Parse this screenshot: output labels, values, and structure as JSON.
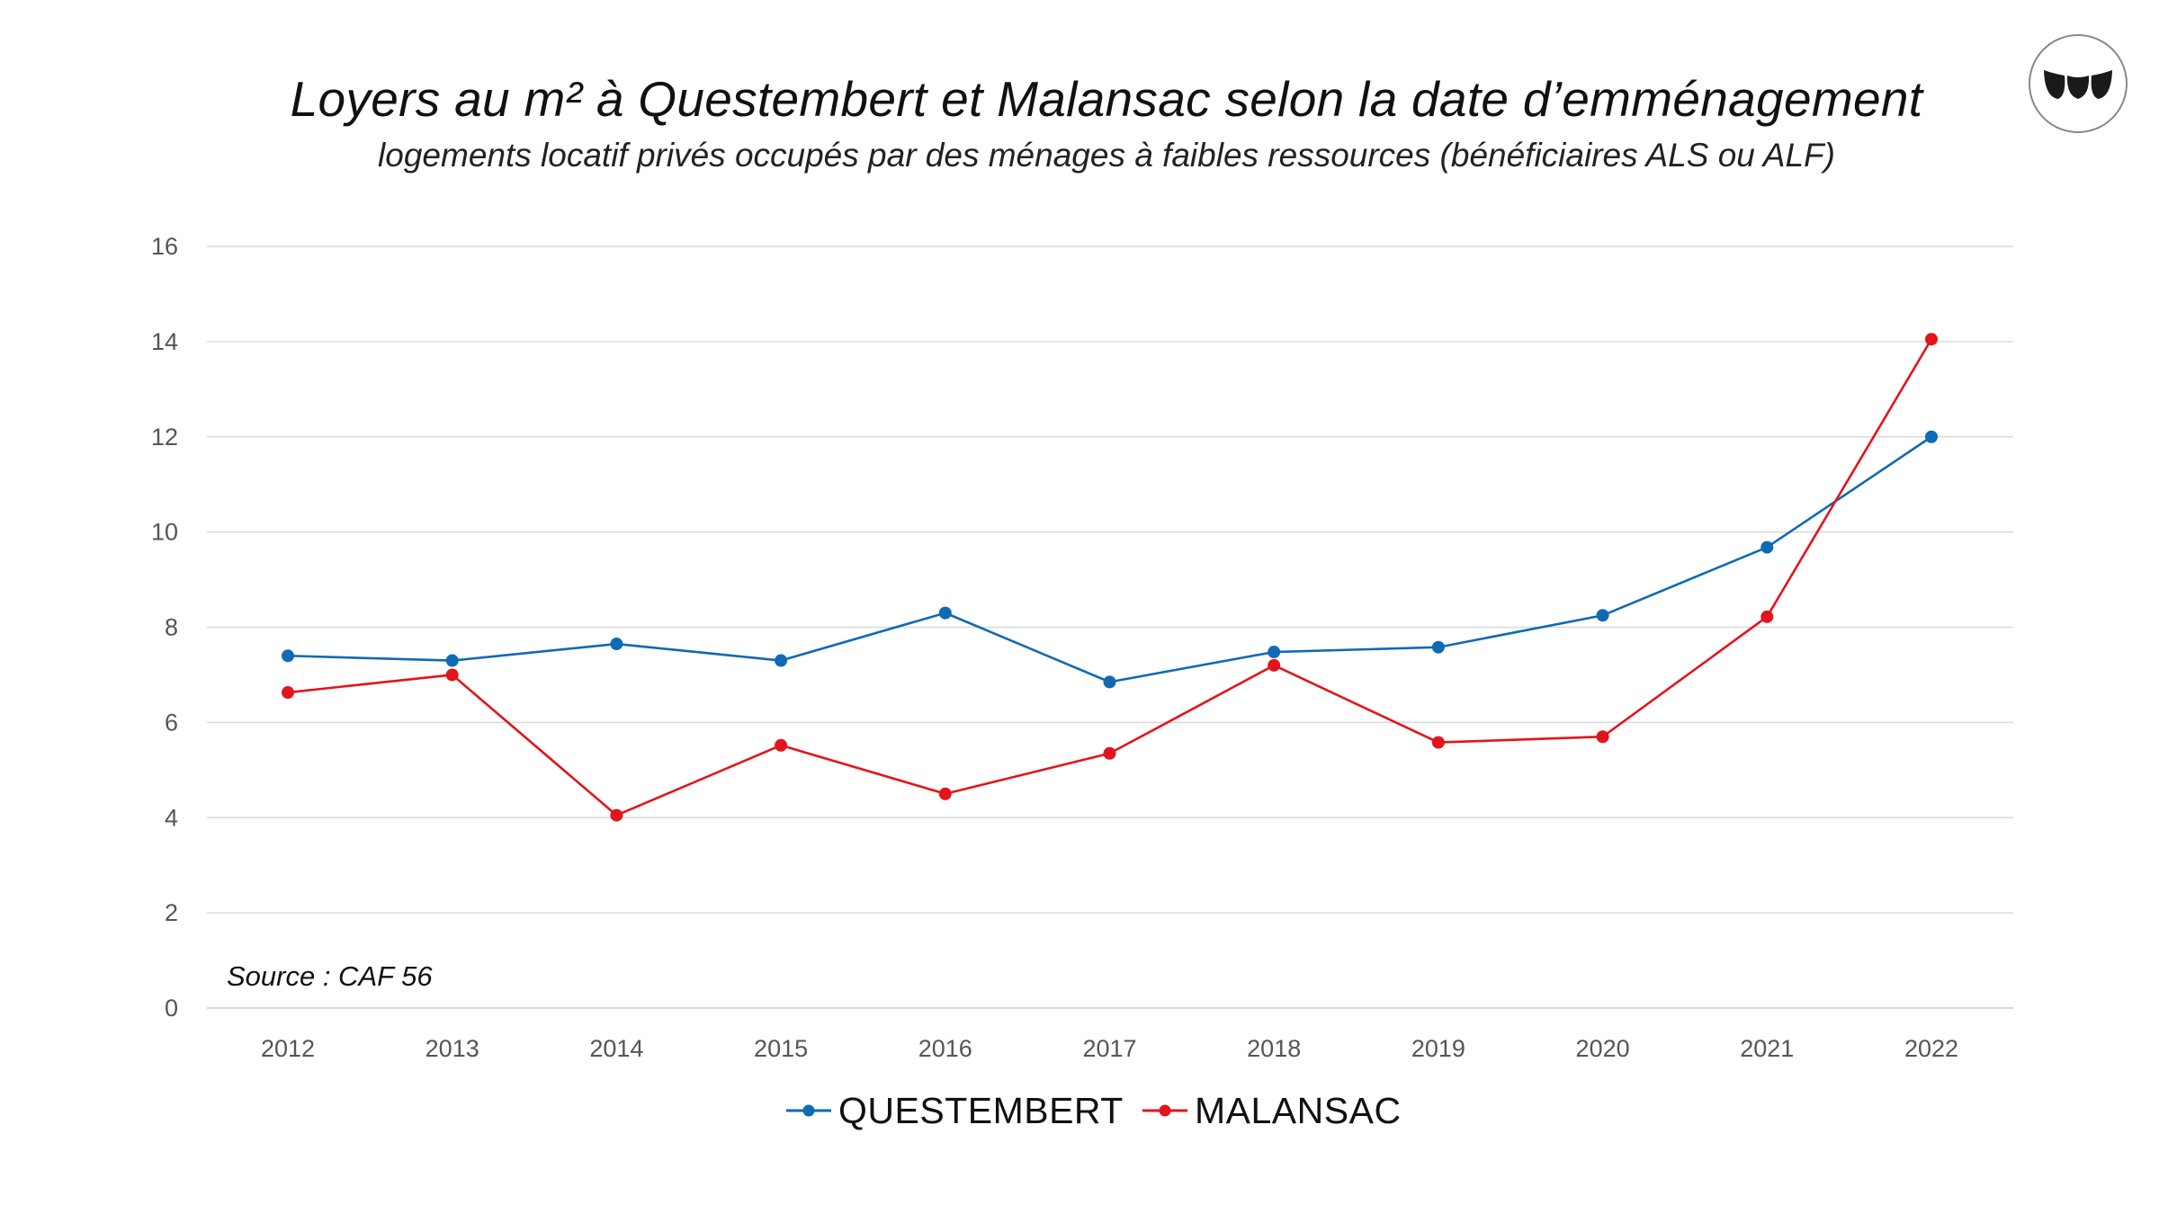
{
  "title": "Loyers au m² à Questembert et Malansac selon la date d’emménagement",
  "subtitle": "logements locatif privés occupés par des ménages à faibles ressources (bénéficiaires ALS ou ALF)",
  "source": "Source : CAF 56",
  "logo": {
    "icon": "brand-logo-icon"
  },
  "chart_data": {
    "type": "line",
    "title": "Loyers au m² à Questembert et Malansac selon la date d’emménagement",
    "subtitle": "logements locatif privés occupés par des ménages à faibles ressources (bénéficiaires ALS ou ALF)",
    "xlabel": "",
    "ylabel": "",
    "categories": [
      "2012",
      "2013",
      "2014",
      "2015",
      "2016",
      "2017",
      "2018",
      "2019",
      "2020",
      "2021",
      "2022"
    ],
    "ylim": [
      0,
      16
    ],
    "yticks": [
      "0",
      "2",
      "4",
      "6",
      "8",
      "10",
      "12",
      "14",
      "16"
    ],
    "grid": true,
    "legend_position": "bottom",
    "series": [
      {
        "name": "QUESTEMBERT",
        "color": "#0f6ab4",
        "values": [
          7.4,
          7.3,
          7.65,
          7.3,
          8.3,
          6.85,
          7.48,
          7.58,
          8.25,
          9.68,
          12.0
        ]
      },
      {
        "name": "MALANSAC",
        "color": "#e3141b",
        "values": [
          6.63,
          7.0,
          4.05,
          5.52,
          4.5,
          5.35,
          7.2,
          5.58,
          5.7,
          8.22,
          14.05
        ]
      }
    ],
    "annotations": [
      "Source : CAF 56"
    ]
  }
}
